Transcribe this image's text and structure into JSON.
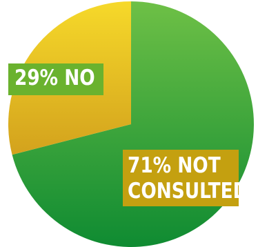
{
  "chart_data": {
    "type": "pie",
    "categories": [
      "NO",
      "NOT CONSULTED"
    ],
    "values": [
      29,
      71
    ],
    "unit": "%",
    "labels": [
      {
        "lines": [
          "29% NO"
        ]
      },
      {
        "lines": [
          "71% NOT",
          "CONSULTED"
        ]
      }
    ],
    "colors": {
      "slice_no_top": "#f6d92a",
      "slice_no_bottom": "#d3a21d",
      "slice_nc_top": "#6ec046",
      "slice_nc_bottom": "#0f8b32",
      "label_no_bg": "#6ab22e",
      "label_nc_bg": "#c4a010"
    }
  }
}
